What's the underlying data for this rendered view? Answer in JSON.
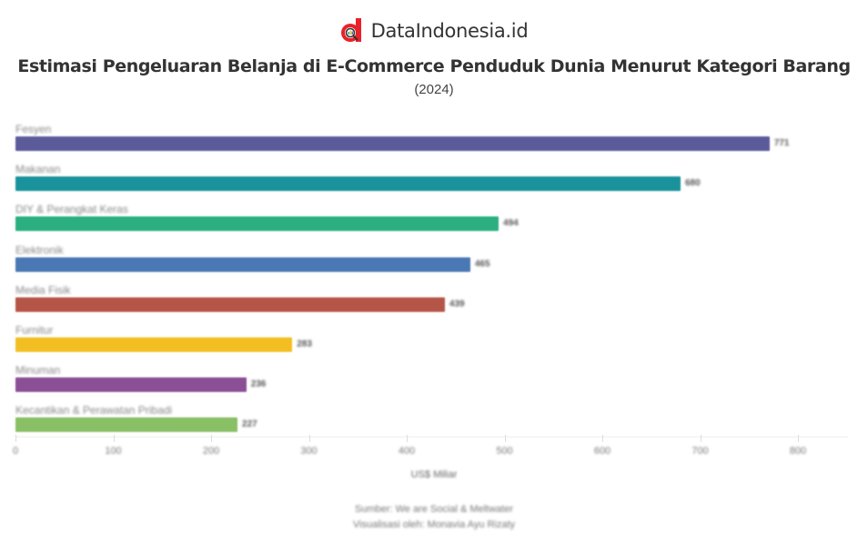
{
  "brand": {
    "name": "DataIndonesia.id",
    "logo_color": "#e8222a"
  },
  "header": {
    "title": "Estimasi Pengeluaran Belanja di E-Commerce Penduduk Dunia Menurut Kategori Barang",
    "subtitle": "(2024)"
  },
  "footer": {
    "source": "Sumber: We are Social & Meltwater",
    "credit": "Visualisasi oleh: Monavia Ayu Rizaty"
  },
  "chart_data": {
    "type": "bar",
    "orientation": "horizontal",
    "title": "Estimasi Pengeluaran Belanja di E-Commerce Penduduk Dunia Menurut Kategori Barang",
    "subtitle": "(2024)",
    "xlabel": "US$ Miliar",
    "ylabel": "",
    "xlim": [
      0,
      850
    ],
    "xticks": [
      "0",
      "100",
      "200",
      "300",
      "400",
      "500",
      "600",
      "700",
      "800"
    ],
    "grid": false,
    "legend": "none",
    "categories": [
      "Fesyen",
      "Makanan",
      "DIY & Perangkat Keras",
      "Elektronik",
      "Media Fisik",
      "Furnitur",
      "Minuman",
      "Kecantikan & Perawatan Pribadi"
    ],
    "values": [
      771,
      680,
      494,
      465,
      439,
      283,
      236,
      227
    ],
    "value_labels": [
      "771",
      "680",
      "494",
      "465",
      "439",
      "283",
      "236",
      "227"
    ],
    "colors": [
      "#5b5b9b",
      "#1a929b",
      "#2bae80",
      "#4a78b5",
      "#b55548",
      "#f2be22",
      "#8b4f96",
      "#89bf65"
    ]
  }
}
